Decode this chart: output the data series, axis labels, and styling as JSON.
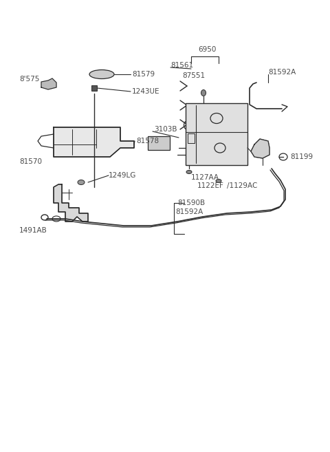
{
  "bg_color": "#ffffff",
  "line_color": "#2a2a2a",
  "text_color": "#4a4a4a",
  "figsize": [
    4.8,
    6.57
  ],
  "dpi": 100,
  "xlim": [
    0,
    480
  ],
  "ylim": [
    0,
    657
  ]
}
